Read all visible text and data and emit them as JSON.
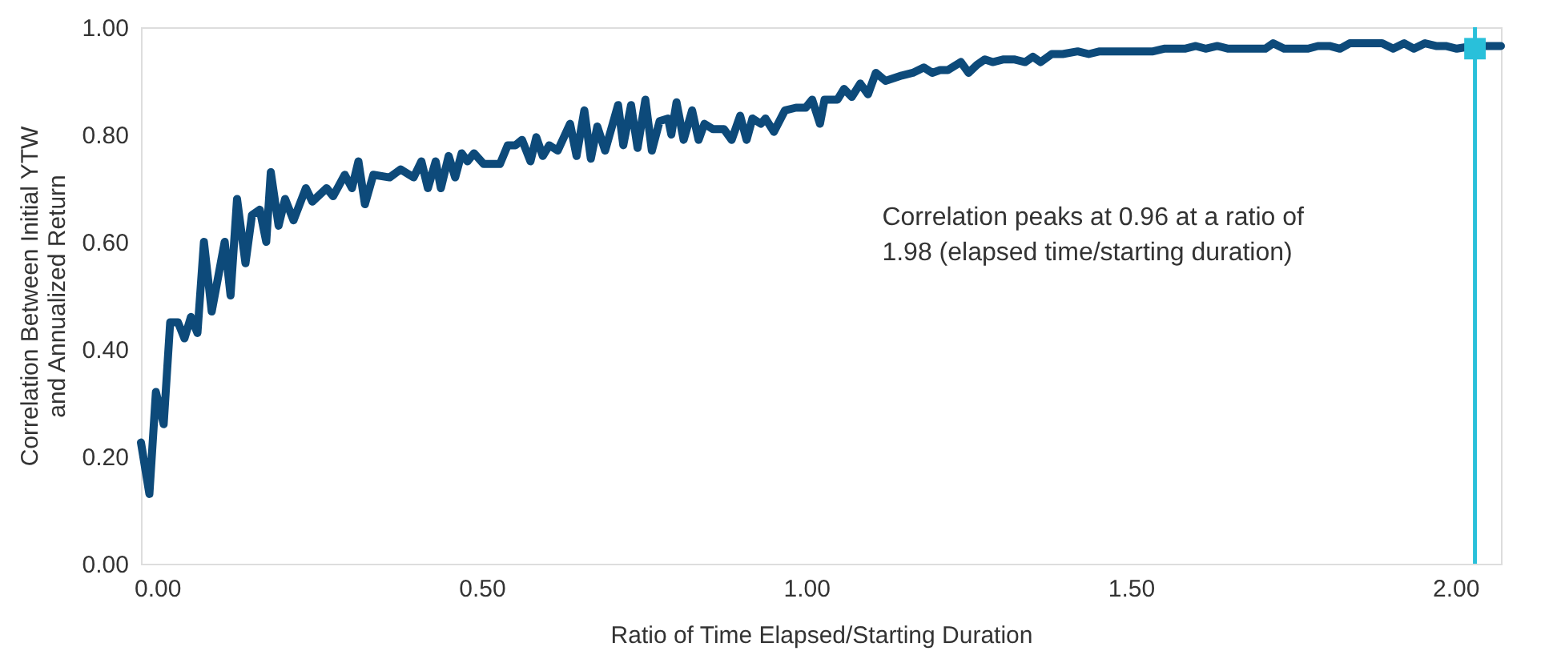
{
  "chart_data": {
    "type": "line",
    "xlabel": "Ratio of Time Elapsed/Starting Duration",
    "ylabel": "Correlation Between Initial YTW\nand Annualized Return",
    "xlim": [
      -0.025,
      2.07
    ],
    "ylim": [
      0,
      1
    ],
    "xticks": [
      {
        "value": 0,
        "label": "0.00"
      },
      {
        "value": 0.5,
        "label": "0.50"
      },
      {
        "value": 1,
        "label": "1.00"
      },
      {
        "value": 1.5,
        "label": "1.50"
      },
      {
        "value": 2,
        "label": "2.00"
      }
    ],
    "yticks": [
      {
        "value": 0,
        "label": "0.00"
      },
      {
        "value": 0.2,
        "label": "0.20"
      },
      {
        "value": 0.4,
        "label": "0.40"
      },
      {
        "value": 0.6,
        "label": "0.60"
      },
      {
        "value": 0.8,
        "label": "0.80"
      },
      {
        "value": 1,
        "label": "1.00"
      }
    ],
    "grid": false,
    "legend": false,
    "line_style": "solid",
    "marker": "none",
    "series": [
      {
        "color": "#0d4a7a",
        "x": [
          -0.025,
          -0.012,
          -0.002,
          0.01,
          0.02,
          0.032,
          0.042,
          0.052,
          0.062,
          0.072,
          0.084,
          0.104,
          0.113,
          0.123,
          0.136,
          0.146,
          0.158,
          0.168,
          0.175,
          0.187,
          0.197,
          0.21,
          0.229,
          0.239,
          0.261,
          0.271,
          0.289,
          0.3,
          0.31,
          0.32,
          0.333,
          0.358,
          0.375,
          0.395,
          0.407,
          0.417,
          0.429,
          0.437,
          0.449,
          0.459,
          0.469,
          0.478,
          0.488,
          0.503,
          0.528,
          0.54,
          0.552,
          0.562,
          0.575,
          0.584,
          0.594,
          0.604,
          0.617,
          0.636,
          0.646,
          0.658,
          0.668,
          0.678,
          0.69,
          0.71,
          0.718,
          0.73,
          0.74,
          0.752,
          0.762,
          0.774,
          0.787,
          0.792,
          0.8,
          0.811,
          0.824,
          0.834,
          0.843,
          0.856,
          0.873,
          0.885,
          0.898,
          0.908,
          0.917,
          0.93,
          0.937,
          0.95,
          0.967,
          0.984,
          0.999,
          1.009,
          1.021,
          1.028,
          1.048,
          1.058,
          1.07,
          1.083,
          1.095,
          1.107,
          1.122,
          1.147,
          1.164,
          1.181,
          1.194,
          1.206,
          1.218,
          1.238,
          1.25,
          1.263,
          1.275,
          1.287,
          1.304,
          1.32,
          1.337,
          1.349,
          1.361,
          1.378,
          1.395,
          1.418,
          1.435,
          1.452,
          1.467,
          1.485,
          1.502,
          1.516,
          1.534,
          1.551,
          1.566,
          1.583,
          1.6,
          1.615,
          1.633,
          1.65,
          1.665,
          1.69,
          1.707,
          1.719,
          1.736,
          1.756,
          1.773,
          1.788,
          1.806,
          1.822,
          1.837,
          1.855,
          1.872,
          1.887,
          1.904,
          1.921,
          1.936,
          1.953,
          1.97,
          1.985,
          2.002,
          2.027,
          2.052,
          2.07
        ],
        "values": [
          0.226,
          0.13,
          0.32,
          0.26,
          0.45,
          0.45,
          0.42,
          0.46,
          0.43,
          0.6,
          0.47,
          0.6,
          0.5,
          0.68,
          0.56,
          0.65,
          0.66,
          0.6,
          0.73,
          0.63,
          0.68,
          0.64,
          0.7,
          0.675,
          0.7,
          0.685,
          0.725,
          0.7,
          0.75,
          0.67,
          0.725,
          0.72,
          0.735,
          0.72,
          0.75,
          0.7,
          0.75,
          0.7,
          0.76,
          0.72,
          0.765,
          0.75,
          0.765,
          0.745,
          0.745,
          0.78,
          0.78,
          0.79,
          0.75,
          0.795,
          0.76,
          0.78,
          0.77,
          0.82,
          0.76,
          0.845,
          0.755,
          0.815,
          0.77,
          0.855,
          0.78,
          0.855,
          0.775,
          0.865,
          0.77,
          0.825,
          0.83,
          0.8,
          0.86,
          0.79,
          0.845,
          0.79,
          0.82,
          0.81,
          0.81,
          0.79,
          0.835,
          0.79,
          0.83,
          0.82,
          0.83,
          0.805,
          0.845,
          0.85,
          0.85,
          0.865,
          0.82,
          0.865,
          0.865,
          0.885,
          0.87,
          0.895,
          0.875,
          0.915,
          0.9,
          0.91,
          0.915,
          0.925,
          0.915,
          0.92,
          0.92,
          0.935,
          0.915,
          0.93,
          0.94,
          0.935,
          0.94,
          0.94,
          0.935,
          0.945,
          0.935,
          0.95,
          0.95,
          0.955,
          0.95,
          0.955,
          0.955,
          0.955,
          0.955,
          0.955,
          0.955,
          0.96,
          0.96,
          0.96,
          0.965,
          0.96,
          0.965,
          0.96,
          0.96,
          0.96,
          0.96,
          0.97,
          0.96,
          0.96,
          0.96,
          0.965,
          0.965,
          0.96,
          0.97,
          0.97,
          0.97,
          0.97,
          0.96,
          0.97,
          0.96,
          0.97,
          0.965,
          0.965,
          0.96,
          0.965,
          0.965,
          0.965
        ]
      },
      {
        "type": "scatter",
        "marker": "square",
        "color": "#29c0da",
        "x": [
          2.03
        ],
        "values": [
          0.96
        ]
      }
    ],
    "ref_lines": [
      {
        "axis": "x",
        "value": 2.03,
        "color": "#29c0da",
        "line_style": "solid"
      }
    ],
    "annotations": [
      "Correlation peaks at 0.96 at a ratio of\n1.98 (elapsed time/starting duration)"
    ]
  }
}
